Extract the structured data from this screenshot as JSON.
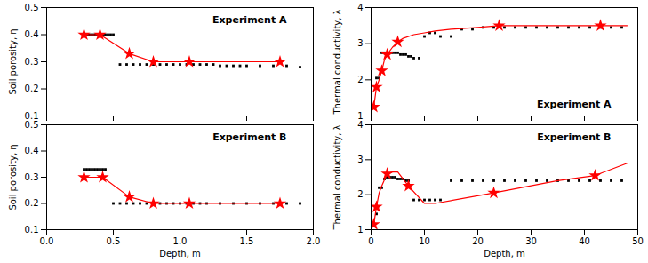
{
  "chart_data": [
    {
      "type": "scatter",
      "title": "Experiment A",
      "ylabel": "Soil porosity, η",
      "tick_labels": "y",
      "xlim": [
        0.0,
        2.0
      ],
      "ylim": [
        0.1,
        0.5
      ],
      "xticks": [
        {
          "value": 0.0,
          "label": "0.0"
        },
        0.5,
        {
          "value": 1.0,
          "label": "1.0"
        },
        1.5,
        {
          "value": 2.0,
          "label": "2.0"
        }
      ],
      "yticks": [
        0.1,
        0.2,
        0.3,
        0.4,
        0.5
      ],
      "grid": false,
      "series": [
        {
          "type": "scatter",
          "marker": "square",
          "color": "#000000",
          "x": [
            0.28,
            0.3,
            0.32,
            0.34,
            0.36,
            0.38,
            0.4,
            0.42,
            0.44,
            0.46,
            0.48,
            0.5,
            0.55,
            0.6,
            0.65,
            0.7,
            0.75,
            0.8,
            0.85,
            0.9,
            0.95,
            1.0,
            1.05,
            1.1,
            1.15,
            1.2,
            1.25,
            1.3,
            1.35,
            1.4,
            1.45,
            1.5,
            1.6,
            1.7,
            1.8,
            1.9
          ],
          "values": [
            0.4,
            0.4,
            0.4,
            0.4,
            0.4,
            0.4,
            0.4,
            0.4,
            0.4,
            0.4,
            0.4,
            0.4,
            0.29,
            0.29,
            0.29,
            0.29,
            0.29,
            0.29,
            0.29,
            0.29,
            0.29,
            0.29,
            0.29,
            0.29,
            0.29,
            0.29,
            0.29,
            0.285,
            0.285,
            0.285,
            0.285,
            0.285,
            0.285,
            0.285,
            0.285,
            0.28
          ]
        },
        {
          "type": "line",
          "color": "#FF0000",
          "x": [
            0.28,
            0.4,
            0.62,
            0.8,
            1.07,
            1.75
          ],
          "values": [
            0.4,
            0.4,
            0.33,
            0.3,
            0.3,
            0.3
          ]
        },
        {
          "type": "scatter",
          "marker": "star",
          "color": "#FF0000",
          "x": [
            0.28,
            0.4,
            0.62,
            0.8,
            1.07,
            1.75
          ],
          "values": [
            0.4,
            0.4,
            0.33,
            0.3,
            0.3,
            0.3
          ]
        }
      ]
    },
    {
      "type": "scatter",
      "title": "Experiment A",
      "ylabel": "Thermal conductivity, λ",
      "tick_labels": "y",
      "xlim": [
        0.0,
        50.0
      ],
      "ylim": [
        1.0,
        4.0
      ],
      "xticks": [
        0,
        10,
        20,
        30,
        40,
        50
      ],
      "yticks": [
        1,
        2,
        3,
        4
      ],
      "grid": false,
      "series": [
        {
          "type": "scatter",
          "marker": "square",
          "color": "#000000",
          "x": [
            1.0,
            1.5,
            2.0,
            2.5,
            3.0,
            3.5,
            4.0,
            4.5,
            5.0,
            5.5,
            6.0,
            6.5,
            7.0,
            7.5,
            8.0,
            9.0,
            10.0,
            11.0,
            12.0,
            13.0,
            15.0,
            17.0,
            19.0,
            21.0,
            23.0,
            25.0,
            27.0,
            29.0,
            31.0,
            33.0,
            35.0,
            37.0,
            39.0,
            41.0,
            43.0,
            45.0,
            47.0
          ],
          "values": [
            2.05,
            2.05,
            2.75,
            2.75,
            2.75,
            2.75,
            2.75,
            2.75,
            2.75,
            2.7,
            2.7,
            2.7,
            2.65,
            2.65,
            2.6,
            2.6,
            3.2,
            3.3,
            3.3,
            3.2,
            3.2,
            3.4,
            3.4,
            3.45,
            3.45,
            3.45,
            3.45,
            3.45,
            3.45,
            3.45,
            3.45,
            3.45,
            3.45,
            3.45,
            3.45,
            3.45,
            3.45
          ]
        },
        {
          "type": "line",
          "color": "#FF0000",
          "x": [
            0.5,
            1.0,
            1.5,
            2.0,
            2.5,
            3.0,
            4.0,
            5.0,
            6.0,
            8.0,
            10.0,
            12.0,
            15.0,
            20.0,
            24.0,
            43.0,
            48.0
          ],
          "values": [
            1.25,
            1.8,
            2.0,
            2.25,
            2.55,
            2.7,
            2.9,
            3.05,
            3.15,
            3.25,
            3.3,
            3.35,
            3.4,
            3.45,
            3.5,
            3.5,
            3.5
          ]
        },
        {
          "type": "scatter",
          "marker": "star",
          "color": "#FF0000",
          "x": [
            0.5,
            1.0,
            2.0,
            3.0,
            5.0,
            24.0,
            43.0
          ],
          "values": [
            1.25,
            1.8,
            2.25,
            2.7,
            3.05,
            3.5,
            3.5
          ]
        }
      ]
    },
    {
      "type": "scatter",
      "title": "Experiment B",
      "xlabel": "Depth, m",
      "ylabel": "Soil porosity, η",
      "xlim": [
        0.0,
        2.0
      ],
      "ylim": [
        0.1,
        0.5
      ],
      "xticks": [
        {
          "value": 0.0,
          "label": "0.0"
        },
        0.5,
        {
          "value": 1.0,
          "label": "1.0"
        },
        1.5,
        {
          "value": 2.0,
          "label": "2.0"
        }
      ],
      "yticks": [
        0.1,
        0.2,
        0.3,
        0.4,
        0.5
      ],
      "grid": false,
      "series": [
        {
          "type": "scatter",
          "marker": "square",
          "color": "#000000",
          "x": [
            0.28,
            0.3,
            0.32,
            0.34,
            0.36,
            0.38,
            0.4,
            0.42,
            0.44,
            0.5,
            0.55,
            0.6,
            0.65,
            0.7,
            0.75,
            0.8,
            0.85,
            0.9,
            0.95,
            1.0,
            1.05,
            1.1,
            1.15,
            1.2,
            1.3,
            1.4,
            1.5,
            1.6,
            1.7,
            1.8,
            1.9
          ],
          "values": [
            0.33,
            0.33,
            0.33,
            0.33,
            0.33,
            0.33,
            0.33,
            0.33,
            0.33,
            0.2,
            0.2,
            0.2,
            0.2,
            0.2,
            0.2,
            0.2,
            0.2,
            0.2,
            0.2,
            0.2,
            0.2,
            0.2,
            0.2,
            0.2,
            0.2,
            0.2,
            0.2,
            0.2,
            0.2,
            0.2,
            0.2
          ]
        },
        {
          "type": "line",
          "color": "#FF0000",
          "x": [
            0.28,
            0.42,
            0.62,
            0.8,
            1.07,
            1.75
          ],
          "values": [
            0.3,
            0.3,
            0.225,
            0.2,
            0.2,
            0.2
          ]
        },
        {
          "type": "scatter",
          "marker": "star",
          "color": "#FF0000",
          "x": [
            0.28,
            0.42,
            0.62,
            0.8,
            1.07,
            1.75
          ],
          "values": [
            0.3,
            0.3,
            0.225,
            0.2,
            0.2,
            0.2
          ]
        }
      ]
    },
    {
      "type": "scatter",
      "title": "Experiment B",
      "xlabel": "Depth, m",
      "ylabel": "Thermal conductivity, λ",
      "xlim": [
        0.0,
        50.0
      ],
      "ylim": [
        1.0,
        4.0
      ],
      "xticks": [
        0,
        10,
        20,
        30,
        40,
        50
      ],
      "yticks": [
        1,
        2,
        3,
        4
      ],
      "grid": false,
      "series": [
        {
          "type": "scatter",
          "marker": "square",
          "color": "#000000",
          "x": [
            1.0,
            1.5,
            2.0,
            2.5,
            3.0,
            3.5,
            4.0,
            4.5,
            5.0,
            5.5,
            6.0,
            6.5,
            7.0,
            8.0,
            9.0,
            10.0,
            11.0,
            12.0,
            13.0,
            15.0,
            17.0,
            19.0,
            21.0,
            23.0,
            25.0,
            27.0,
            29.0,
            31.0,
            33.0,
            35.0,
            37.0,
            39.0,
            41.0,
            43.0,
            45.0,
            47.0
          ],
          "values": [
            1.45,
            2.2,
            2.2,
            2.45,
            2.5,
            2.5,
            2.5,
            2.5,
            2.45,
            2.45,
            2.45,
            2.4,
            2.4,
            1.85,
            1.85,
            1.85,
            1.85,
            1.85,
            1.85,
            2.4,
            2.4,
            2.4,
            2.4,
            2.4,
            2.4,
            2.4,
            2.4,
            2.4,
            2.4,
            2.4,
            2.4,
            2.4,
            2.4,
            2.4,
            2.4,
            2.4
          ]
        },
        {
          "type": "line",
          "color": "#FF0000",
          "x": [
            0.5,
            1.0,
            1.5,
            2.0,
            3.0,
            4.0,
            5.0,
            7.0,
            10.0,
            12.0,
            23.0,
            35.0,
            42.0,
            48.0
          ],
          "values": [
            1.15,
            1.65,
            2.05,
            2.25,
            2.6,
            2.65,
            2.65,
            2.25,
            1.75,
            1.75,
            2.05,
            2.4,
            2.55,
            2.9
          ]
        },
        {
          "type": "scatter",
          "marker": "star",
          "color": "#FF0000",
          "x": [
            0.5,
            1.0,
            3.0,
            7.0,
            23.0,
            42.0
          ],
          "values": [
            1.15,
            1.65,
            2.6,
            2.25,
            2.05,
            2.55
          ]
        }
      ]
    }
  ]
}
